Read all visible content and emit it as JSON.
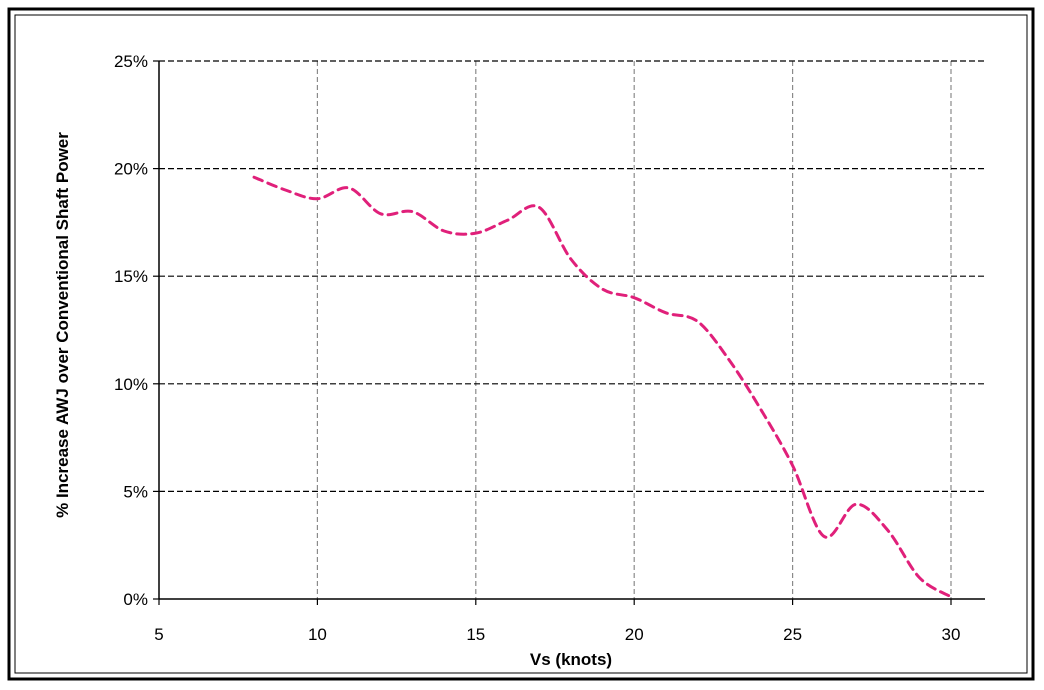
{
  "chart_data": {
    "type": "line",
    "title": "",
    "xlabel": "Vs (knots)",
    "ylabel": "% Increase AWJ over Conventional Shaft Power",
    "xlim": [
      5,
      30
    ],
    "ylim": [
      0,
      25
    ],
    "x_ticks": [
      5,
      10,
      15,
      20,
      25,
      30
    ],
    "x_tick_labels": [
      "5",
      "10",
      "15",
      "20",
      "25",
      "30"
    ],
    "y_ticks": [
      0,
      5,
      10,
      15,
      20,
      25
    ],
    "y_tick_labels": [
      "0%",
      "5%",
      "10%",
      "15%",
      "20%",
      "25%"
    ],
    "grid": true,
    "legend": "none",
    "series": [
      {
        "color": "#e0207a",
        "line_style": "dashed",
        "smooth": true,
        "x": [
          8,
          9,
          10,
          11,
          12,
          13,
          14,
          15,
          16,
          17,
          18,
          19,
          20,
          21,
          22,
          23,
          24,
          25,
          26,
          27,
          28,
          29,
          30
        ],
        "y": [
          19.6,
          19.0,
          18.6,
          19.1,
          17.9,
          18.0,
          17.1,
          17.0,
          17.6,
          18.2,
          15.8,
          14.4,
          14.0,
          13.3,
          12.9,
          11.1,
          8.8,
          6.2,
          2.9,
          4.4,
          3.2,
          1.0,
          0.1
        ]
      }
    ]
  }
}
